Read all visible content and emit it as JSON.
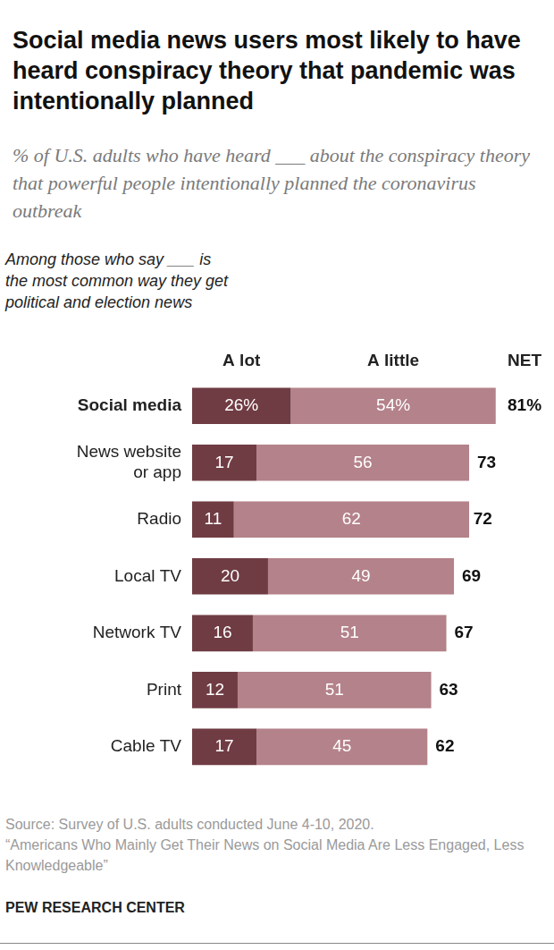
{
  "chart_data": {
    "type": "bar",
    "orientation": "horizontal",
    "stacked": true,
    "data_labels": true,
    "tick_labels": "y",
    "title": "Social media news users most likely to have heard conspiracy theory that pandemic was intentionally planned",
    "subtitle": "% of U.S. adults who have heard ___ about the conspiracy theory that powerful people intentionally planned the coronavirus outbreak",
    "annotations": [
      "Among those who say ___ is the most common way they get political and election news"
    ],
    "categories": [
      "Social media",
      "News website or app",
      "Radio",
      "Local TV",
      "Network TV",
      "Print",
      "Cable TV"
    ],
    "series": [
      {
        "name": "A lot",
        "color": "#703c43",
        "values": [
          26,
          17,
          11,
          20,
          16,
          12,
          17
        ],
        "value_labels": [
          "26%",
          "17",
          "11",
          "20",
          "16",
          "12",
          "17"
        ]
      },
      {
        "name": "A little",
        "color": "#b4828a",
        "values": [
          54,
          56,
          62,
          49,
          51,
          51,
          45
        ],
        "value_labels": [
          "54%",
          "56",
          "62",
          "49",
          "51",
          "51",
          "45"
        ]
      }
    ],
    "net": {
      "name": "NET",
      "values": [
        81,
        73,
        72,
        69,
        67,
        63,
        62
      ],
      "value_labels": [
        "81%",
        "73",
        "72",
        "69",
        "67",
        "63",
        "62"
      ]
    },
    "xlim": [
      0,
      81
    ],
    "source": [
      "Source: Survey of U.S. adults conducted June 4-10, 2020.",
      "“Americans Who Mainly Get Their News on Social Media Are Less Engaged, Less Knowledgeable”"
    ],
    "credit": "PEW RESEARCH CENTER"
  }
}
